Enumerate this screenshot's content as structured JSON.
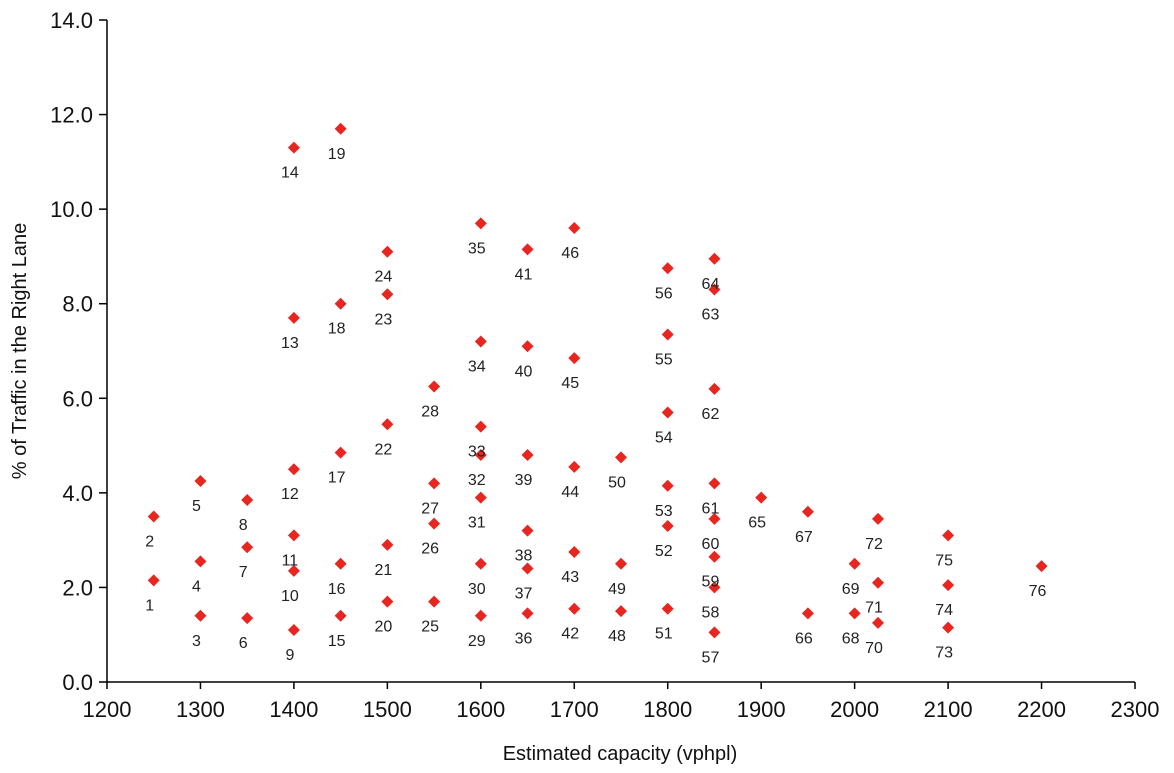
{
  "chart_data": {
    "type": "scatter",
    "xlabel": "Estimated capacity (vphpl)",
    "ylabel": "% of Traffic in the Right Lane",
    "xlim": [
      1200,
      2300
    ],
    "ylim": [
      0,
      14
    ],
    "x_ticks": [
      "1200",
      "1300",
      "1400",
      "1500",
      "1600",
      "1700",
      "1800",
      "1900",
      "2000",
      "2100",
      "2200",
      "2300"
    ],
    "y_ticks": [
      "0.0",
      "2.0",
      "4.0",
      "6.0",
      "8.0",
      "10.0",
      "12.0",
      "14.0"
    ],
    "grid": false,
    "marker": "diamond",
    "marker_color": "#e8251f",
    "points": [
      {
        "label": "1",
        "x": 1250,
        "y": 2.15
      },
      {
        "label": "2",
        "x": 1250,
        "y": 3.5
      },
      {
        "label": "3",
        "x": 1300,
        "y": 1.4
      },
      {
        "label": "4",
        "x": 1300,
        "y": 2.55
      },
      {
        "label": "5",
        "x": 1300,
        "y": 4.25
      },
      {
        "label": "6",
        "x": 1350,
        "y": 1.35
      },
      {
        "label": "7",
        "x": 1350,
        "y": 2.85
      },
      {
        "label": "8",
        "x": 1350,
        "y": 3.85
      },
      {
        "label": "9",
        "x": 1400,
        "y": 1.1
      },
      {
        "label": "10",
        "x": 1400,
        "y": 2.35
      },
      {
        "label": "11",
        "x": 1400,
        "y": 3.1
      },
      {
        "label": "12",
        "x": 1400,
        "y": 4.5
      },
      {
        "label": "13",
        "x": 1400,
        "y": 7.7
      },
      {
        "label": "14",
        "x": 1400,
        "y": 11.3
      },
      {
        "label": "15",
        "x": 1450,
        "y": 1.4
      },
      {
        "label": "16",
        "x": 1450,
        "y": 2.5
      },
      {
        "label": "17",
        "x": 1450,
        "y": 4.85
      },
      {
        "label": "18",
        "x": 1450,
        "y": 8.0
      },
      {
        "label": "19",
        "x": 1450,
        "y": 11.7
      },
      {
        "label": "20",
        "x": 1500,
        "y": 1.7
      },
      {
        "label": "21",
        "x": 1500,
        "y": 2.9
      },
      {
        "label": "22",
        "x": 1500,
        "y": 5.45
      },
      {
        "label": "23",
        "x": 1500,
        "y": 8.2
      },
      {
        "label": "24",
        "x": 1500,
        "y": 9.1
      },
      {
        "label": "25",
        "x": 1550,
        "y": 1.7
      },
      {
        "label": "26",
        "x": 1550,
        "y": 3.35
      },
      {
        "label": "27",
        "x": 1550,
        "y": 4.2
      },
      {
        "label": "28",
        "x": 1550,
        "y": 6.25
      },
      {
        "label": "29",
        "x": 1600,
        "y": 1.4
      },
      {
        "label": "30",
        "x": 1600,
        "y": 2.5
      },
      {
        "label": "31",
        "x": 1600,
        "y": 3.9
      },
      {
        "label": "32",
        "x": 1600,
        "y": 4.8
      },
      {
        "label": "33",
        "x": 1600,
        "y": 5.4
      },
      {
        "label": "34",
        "x": 1600,
        "y": 7.2
      },
      {
        "label": "35",
        "x": 1600,
        "y": 9.7
      },
      {
        "label": "36",
        "x": 1650,
        "y": 1.45
      },
      {
        "label": "37",
        "x": 1650,
        "y": 2.4
      },
      {
        "label": "38",
        "x": 1650,
        "y": 3.2
      },
      {
        "label": "39",
        "x": 1650,
        "y": 4.8
      },
      {
        "label": "40",
        "x": 1650,
        "y": 7.1
      },
      {
        "label": "41",
        "x": 1650,
        "y": 9.15
      },
      {
        "label": "42",
        "x": 1700,
        "y": 1.55
      },
      {
        "label": "43",
        "x": 1700,
        "y": 2.75
      },
      {
        "label": "44",
        "x": 1700,
        "y": 4.55
      },
      {
        "label": "45",
        "x": 1700,
        "y": 6.85
      },
      {
        "label": "46",
        "x": 1700,
        "y": 9.6
      },
      {
        "label": "48",
        "x": 1750,
        "y": 1.5
      },
      {
        "label": "49",
        "x": 1750,
        "y": 2.5
      },
      {
        "label": "50",
        "x": 1750,
        "y": 4.75
      },
      {
        "label": "51",
        "x": 1800,
        "y": 1.55
      },
      {
        "label": "52",
        "x": 1800,
        "y": 3.3
      },
      {
        "label": "53",
        "x": 1800,
        "y": 4.15
      },
      {
        "label": "54",
        "x": 1800,
        "y": 5.7
      },
      {
        "label": "55",
        "x": 1800,
        "y": 7.35
      },
      {
        "label": "56",
        "x": 1800,
        "y": 8.75
      },
      {
        "label": "57",
        "x": 1850,
        "y": 1.05
      },
      {
        "label": "58",
        "x": 1850,
        "y": 2.0
      },
      {
        "label": "59",
        "x": 1850,
        "y": 2.65
      },
      {
        "label": "60",
        "x": 1850,
        "y": 3.45
      },
      {
        "label": "61",
        "x": 1850,
        "y": 4.2
      },
      {
        "label": "62",
        "x": 1850,
        "y": 6.2
      },
      {
        "label": "63",
        "x": 1850,
        "y": 8.3
      },
      {
        "label": "64",
        "x": 1850,
        "y": 8.95
      },
      {
        "label": "65",
        "x": 1900,
        "y": 3.9
      },
      {
        "label": "66",
        "x": 1950,
        "y": 1.45
      },
      {
        "label": "67",
        "x": 1950,
        "y": 3.6
      },
      {
        "label": "68",
        "x": 2000,
        "y": 1.45
      },
      {
        "label": "69",
        "x": 2000,
        "y": 2.5
      },
      {
        "label": "70",
        "x": 2025,
        "y": 1.25
      },
      {
        "label": "71",
        "x": 2025,
        "y": 2.1
      },
      {
        "label": "72",
        "x": 2025,
        "y": 3.45
      },
      {
        "label": "73",
        "x": 2100,
        "y": 1.15
      },
      {
        "label": "74",
        "x": 2100,
        "y": 2.05
      },
      {
        "label": "75",
        "x": 2100,
        "y": 3.1
      },
      {
        "label": "76",
        "x": 2200,
        "y": 2.45
      }
    ]
  }
}
